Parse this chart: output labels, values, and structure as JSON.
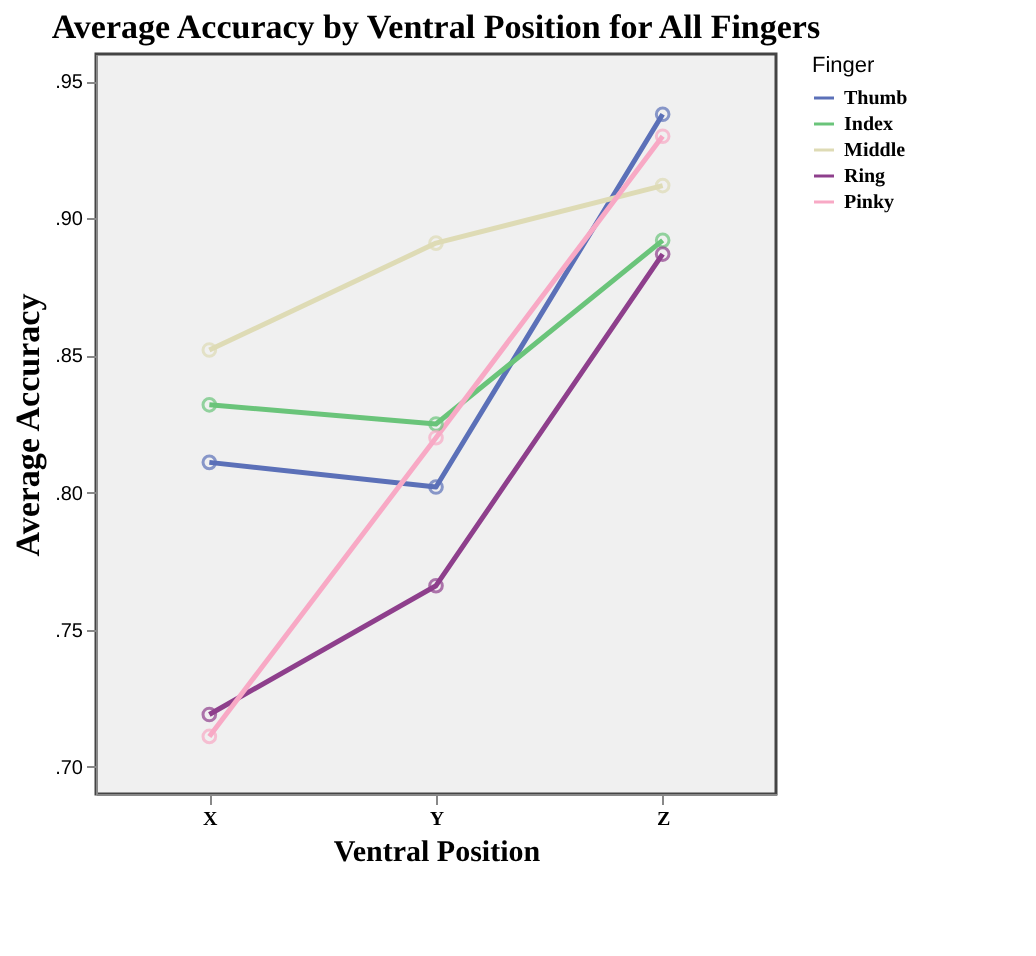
{
  "chart_data": {
    "type": "line",
    "title": "Average Accuracy by Ventral Position for All Fingers",
    "xlabel": "Ventral Position",
    "ylabel": "Average Accuracy",
    "legend_title": "Finger",
    "categories": [
      "X",
      "Y",
      "Z"
    ],
    "series": [
      {
        "name": "Thumb",
        "color": "#5b70b8",
        "values": [
          0.811,
          0.802,
          0.938
        ]
      },
      {
        "name": "Index",
        "color": "#6ac47a",
        "values": [
          0.832,
          0.825,
          0.892
        ]
      },
      {
        "name": "Middle",
        "color": "#dedbb5",
        "values": [
          0.852,
          0.891,
          0.912
        ]
      },
      {
        "name": "Ring",
        "color": "#8e3f8c",
        "values": [
          0.719,
          0.766,
          0.887
        ]
      },
      {
        "name": "Pinky",
        "color": "#f8a9c5",
        "values": [
          0.711,
          0.82,
          0.93
        ]
      }
    ],
    "ylim": [
      0.69,
      0.96
    ],
    "yticks": [
      {
        "value": 0.7,
        "label": ".70"
      },
      {
        "value": 0.75,
        "label": ".75"
      },
      {
        "value": 0.8,
        "label": ".80"
      },
      {
        "value": 0.85,
        "label": ".85"
      },
      {
        "value": 0.9,
        "label": ".90"
      },
      {
        "value": 0.95,
        "label": ".95"
      }
    ],
    "grid": false,
    "legend": "top right",
    "marker": "circle",
    "line_style": "solid"
  }
}
